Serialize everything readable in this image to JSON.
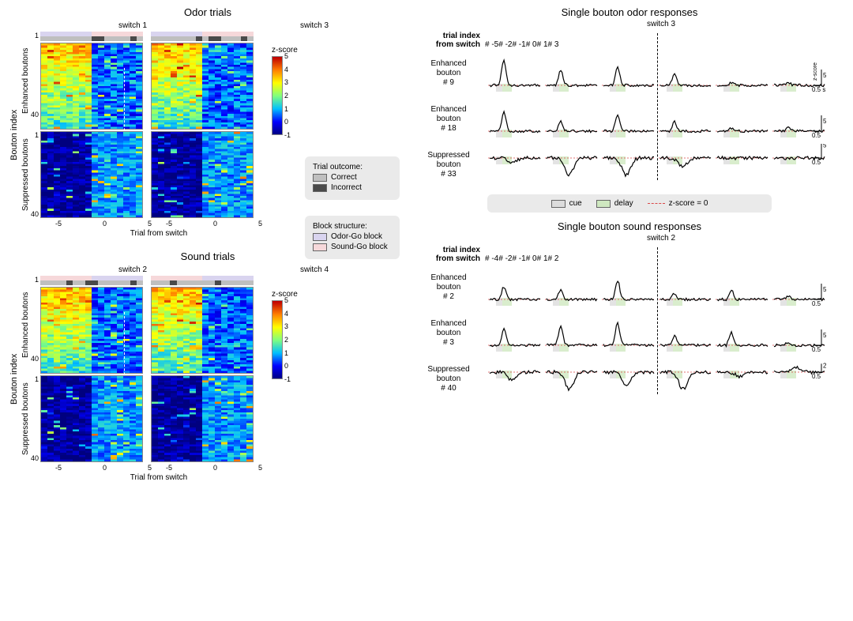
{
  "colors": {
    "odor_block": "#d9d4ef",
    "sound_block": "#f6d8da",
    "correct": "#bfbfbf",
    "incorrect": "#4a4a4a",
    "cue": "#dcdcdc",
    "delay": "#cfe8c0",
    "zscore0": "#d94848",
    "trace": "#000000",
    "bg": "#ffffff",
    "legend_bg": "#eaeaea"
  },
  "colormap": {
    "name": "jet",
    "stops": [
      {
        "v": -1,
        "c": "#00007f"
      },
      {
        "v": 0,
        "c": "#0000ff"
      },
      {
        "v": 1,
        "c": "#00bfff"
      },
      {
        "v": 2,
        "c": "#80ff7f"
      },
      {
        "v": 3,
        "c": "#ffff00"
      },
      {
        "v": 4,
        "c": "#ff7f00"
      },
      {
        "v": 5,
        "c": "#c00000"
      }
    ],
    "label": "z-score",
    "ticks": [
      5,
      4,
      3,
      2,
      1,
      0,
      -1
    ]
  },
  "heatmaps": {
    "xlabel": "Trial from switch",
    "ylabel": "Bouton index",
    "ytick_top": "1",
    "ytick_bot": "40",
    "xticks": [
      "-5",
      "0",
      "5"
    ],
    "n_boutons_enh": 40,
    "n_boutons_sup": 40,
    "n_trials": 16,
    "switch_trial": 8,
    "enhanced_label": "Enhanced\nboutons",
    "suppressed_label": "Suppressed\nboutons",
    "odor": {
      "title": "Odor trials",
      "switches": [
        "switch 1",
        "switch 3"
      ],
      "block_left": "odor",
      "block_right": "sound",
      "seed": 11
    },
    "sound": {
      "title": "Sound trials",
      "switches": [
        "switch 2",
        "switch 4"
      ],
      "block_left": "sound",
      "block_right": "odor",
      "seed": 29
    }
  },
  "legends": {
    "trial_outcome": {
      "title": "Trial outcome:",
      "correct": "Correct",
      "incorrect": "Incorrect"
    },
    "block_structure": {
      "title": "Block structure:",
      "odor": "Odor-Go block",
      "sound": "Sound-Go block"
    },
    "trace_legend": {
      "cue": "cue",
      "delay": "delay",
      "z0": "z-score = 0"
    }
  },
  "traces": {
    "odor": {
      "title": "Single bouton odor responses",
      "switch": "switch 3",
      "head_label": "trial index\nfrom switch",
      "cols": [
        "# -5",
        "# -2",
        "# -1",
        "# 0",
        "# 1",
        "# 3"
      ],
      "vline_after_col": 3,
      "rows": [
        {
          "label": "Enhanced\nbouton\n# 9",
          "amps": [
            8,
            5,
            6,
            4,
            1,
            1
          ],
          "base": 0,
          "sup": false,
          "scale_y": 5,
          "scale_x": "0.5 s",
          "scale_ylab": "z-score"
        },
        {
          "label": "Enhanced\nbouton\n# 18",
          "amps": [
            6,
            3,
            5,
            3,
            1,
            1
          ],
          "base": 0,
          "sup": false,
          "scale_y": 5,
          "scale_x": "0.5"
        },
        {
          "label": "Suppressed\nbouton\n# 33",
          "amps2": [
            -1,
            -4,
            -4,
            -2,
            0,
            0
          ],
          "base": 0,
          "sup": true,
          "scale_y": 5,
          "scale_x": "0.5"
        }
      ]
    },
    "sound": {
      "title": "Single bouton sound responses",
      "switch": "switch 2",
      "head_label": "trial index\nfrom switch",
      "cols": [
        "# -4",
        "# -2",
        "# -1",
        "# 0",
        "# 1",
        "# 2"
      ],
      "vline_after_col": 3,
      "rows": [
        {
          "label": "Enhanced\nbouton\n# 2",
          "amps": [
            4,
            3,
            6,
            2,
            3,
            1
          ],
          "base": 0,
          "sup": false,
          "scale_y": 5,
          "scale_x": "0.5"
        },
        {
          "label": "Enhanced\nbouton\n# 3",
          "amps": [
            5,
            6,
            7,
            3,
            4,
            1
          ],
          "base": 0,
          "sup": false,
          "scale_y": 5,
          "scale_x": "0.5"
        },
        {
          "label": "Suppressed\nbouton\n# 40",
          "amps2": [
            -2,
            -4,
            -3,
            -4,
            -1,
            1
          ],
          "base": 0,
          "sup": true,
          "scale_y": 2,
          "scale_x": "0.5"
        }
      ]
    }
  }
}
